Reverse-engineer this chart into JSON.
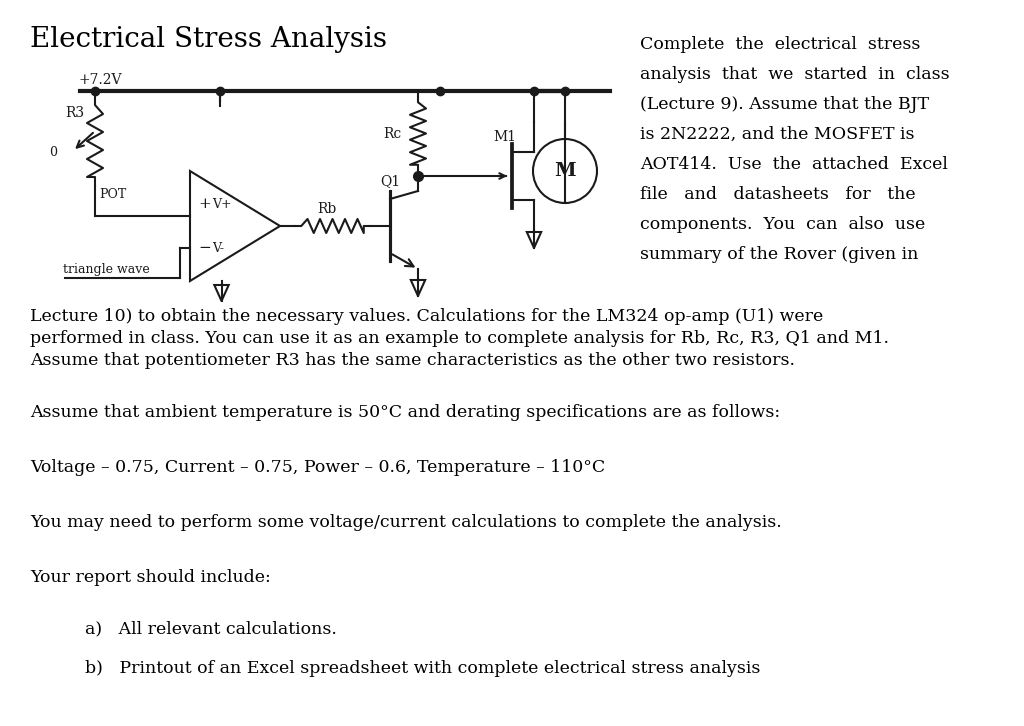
{
  "title": "Electrical Stress Analysis",
  "bg_color": "#ffffff",
  "text_color": "#000000",
  "circuit_color": "#1a1a1a",
  "side_line1": "Complete  the  electrical  stress",
  "side_line2": "analysis  that  we  started  in  class",
  "side_line3": "(Lecture 9). Assume that the BJT",
  "side_line4": "is 2N2222, and the MOSFET is",
  "side_line5": "AOT414.  Use  the  attached  Excel",
  "side_line6": "file   and   datasheets   for   the",
  "side_line7": "components.  You  can  also  use",
  "side_line8": "summary of the Rover (given in",
  "para1_line1": "Lecture 10) to obtain the necessary values. Calculations for the LM324 op-amp (U1) were",
  "para1_line2": "performed in class. You can use it as an example to complete analysis for Rb, Rc, R3, Q1 and M1.",
  "para1_line3": "Assume that potentiometer R3 has the same characteristics as the other two resistors.",
  "para2": "Assume that ambient temperature is 50°C and derating specifications are as follows:",
  "para3": "Voltage – 0.75, Current – 0.75, Power – 0.6, Temperature – 110°C",
  "para4": "You may need to perform some voltage/current calculations to complete the analysis.",
  "para5": "Your report should include:",
  "item_a": "a)   All relevant calculations.",
  "item_b": "b)   Printout of an Excel spreadsheet with complete electrical stress analysis"
}
